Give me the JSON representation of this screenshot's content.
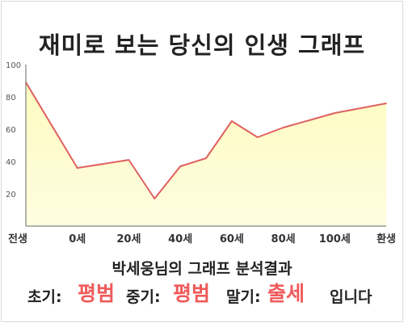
{
  "title": "재미로 보는 당신의 인생 그래프",
  "result": {
    "heading": "박세웅님의 그래프 분석결과",
    "early_label": "초기:",
    "early_value": "평범",
    "middle_label": "중기:",
    "middle_value": "평범",
    "late_label": "말기:",
    "late_value": "출세",
    "suffix": "입니다"
  },
  "colors": {
    "line": "#e06060",
    "fill": "#fdfbc0",
    "accent": "#f05a5a"
  },
  "chart_data": {
    "type": "area",
    "categories": [
      "전생",
      "0세",
      "20세",
      "40세",
      "60세",
      "80세",
      "100세",
      "환생"
    ],
    "x": [
      -1,
      0,
      1,
      1.5,
      2,
      2.5,
      3,
      3.5,
      4,
      5,
      6
    ],
    "values": [
      89,
      36,
      41,
      17,
      37,
      42,
      65,
      55,
      61,
      70,
      76
    ],
    "ylim": [
      0,
      100
    ],
    "yticks": [
      20,
      40,
      60,
      80,
      100
    ],
    "grid": false,
    "series": [
      {
        "values": [
          89,
          36,
          41,
          17,
          37,
          42,
          65,
          55,
          61,
          70,
          76
        ]
      }
    ]
  }
}
